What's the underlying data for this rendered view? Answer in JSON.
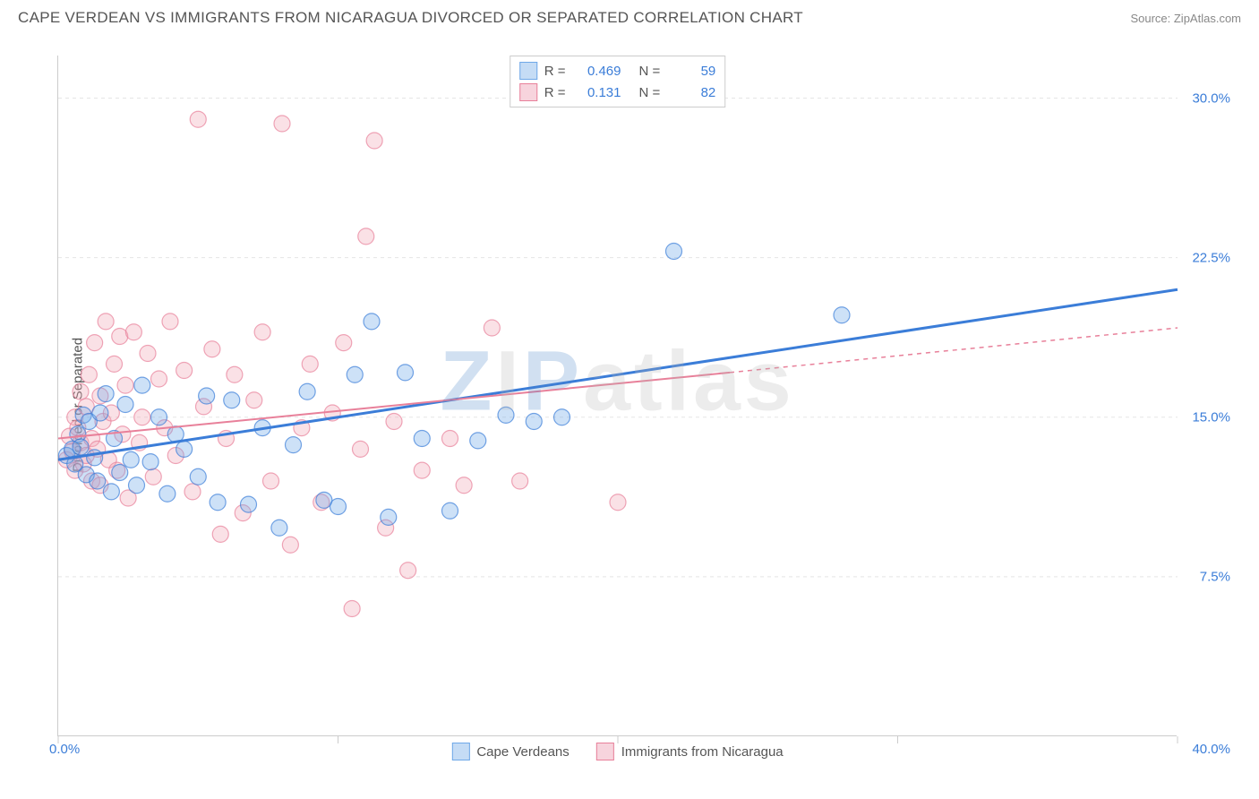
{
  "header": {
    "title": "CAPE VERDEAN VS IMMIGRANTS FROM NICARAGUA DIVORCED OR SEPARATED CORRELATION CHART",
    "source": "Source: ZipAtlas.com"
  },
  "chart": {
    "type": "scatter",
    "y_axis_label": "Divorced or Separated",
    "watermark": "ZIPatlas",
    "xlim": [
      0,
      40
    ],
    "ylim": [
      0,
      32
    ],
    "x_ticks": [
      0,
      10,
      20,
      30,
      40
    ],
    "y_ticks": [
      7.5,
      15.0,
      22.5,
      30.0
    ],
    "x_min_label": "0.0%",
    "x_max_label": "40.0%",
    "y_tick_labels": [
      "7.5%",
      "15.0%",
      "22.5%",
      "30.0%"
    ],
    "grid_color": "#e5e5e5",
    "axis_label_color": "#3b7dd8",
    "marker_radius": 9,
    "marker_fill_opacity": 0.35,
    "series_a": {
      "name": "Cape Verdeans",
      "color": "#6fa8e8",
      "stroke": "#3b7dd8",
      "R": "0.469",
      "N": "59",
      "trend": {
        "x1": 0,
        "y1": 13.0,
        "x2": 40,
        "y2": 21.0,
        "width": 3,
        "dashed": false
      },
      "points": [
        [
          0.3,
          13.2
        ],
        [
          0.5,
          13.5
        ],
        [
          0.6,
          12.8
        ],
        [
          0.7,
          14.2
        ],
        [
          0.8,
          13.6
        ],
        [
          0.9,
          15.1
        ],
        [
          1.0,
          12.3
        ],
        [
          1.1,
          14.8
        ],
        [
          1.3,
          13.1
        ],
        [
          1.4,
          12.0
        ],
        [
          1.5,
          15.2
        ],
        [
          1.7,
          16.1
        ],
        [
          1.9,
          11.5
        ],
        [
          2.0,
          14.0
        ],
        [
          2.2,
          12.4
        ],
        [
          2.4,
          15.6
        ],
        [
          2.6,
          13.0
        ],
        [
          2.8,
          11.8
        ],
        [
          3.0,
          16.5
        ],
        [
          3.3,
          12.9
        ],
        [
          3.6,
          15.0
        ],
        [
          3.9,
          11.4
        ],
        [
          4.2,
          14.2
        ],
        [
          4.5,
          13.5
        ],
        [
          5.0,
          12.2
        ],
        [
          5.3,
          16.0
        ],
        [
          5.7,
          11.0
        ],
        [
          6.2,
          15.8
        ],
        [
          6.8,
          10.9
        ],
        [
          7.3,
          14.5
        ],
        [
          7.9,
          9.8
        ],
        [
          8.4,
          13.7
        ],
        [
          8.9,
          16.2
        ],
        [
          9.5,
          11.1
        ],
        [
          10.0,
          10.8
        ],
        [
          10.6,
          17.0
        ],
        [
          11.2,
          19.5
        ],
        [
          11.8,
          10.3
        ],
        [
          12.4,
          17.1
        ],
        [
          13.0,
          14.0
        ],
        [
          14.0,
          10.6
        ],
        [
          15.0,
          13.9
        ],
        [
          16.0,
          15.1
        ],
        [
          17.0,
          14.8
        ],
        [
          18.0,
          15.0
        ],
        [
          22.0,
          22.8
        ],
        [
          28.0,
          19.8
        ]
      ]
    },
    "series_b": {
      "name": "Immigrants from Nicaragua",
      "color": "#f0a8b8",
      "stroke": "#e8809a",
      "R": "0.131",
      "N": "82",
      "trend_solid": {
        "x1": 0,
        "y1": 14.0,
        "x2": 24,
        "y2": 17.1,
        "width": 2
      },
      "trend_dashed": {
        "x1": 24,
        "y1": 17.1,
        "x2": 40,
        "y2": 19.2,
        "width": 1.5
      },
      "points": [
        [
          0.3,
          13.0
        ],
        [
          0.4,
          14.1
        ],
        [
          0.5,
          13.4
        ],
        [
          0.6,
          15.0
        ],
        [
          0.6,
          12.5
        ],
        [
          0.7,
          14.5
        ],
        [
          0.8,
          13.8
        ],
        [
          0.8,
          16.2
        ],
        [
          0.9,
          12.8
        ],
        [
          1.0,
          15.5
        ],
        [
          1.0,
          13.2
        ],
        [
          1.1,
          17.0
        ],
        [
          1.2,
          14.0
        ],
        [
          1.2,
          12.0
        ],
        [
          1.3,
          18.5
        ],
        [
          1.4,
          13.5
        ],
        [
          1.5,
          16.0
        ],
        [
          1.5,
          11.8
        ],
        [
          1.6,
          14.8
        ],
        [
          1.7,
          19.5
        ],
        [
          1.8,
          13.0
        ],
        [
          1.9,
          15.2
        ],
        [
          2.0,
          17.5
        ],
        [
          2.1,
          12.5
        ],
        [
          2.2,
          18.8
        ],
        [
          2.3,
          14.2
        ],
        [
          2.4,
          16.5
        ],
        [
          2.5,
          11.2
        ],
        [
          2.7,
          19.0
        ],
        [
          2.9,
          13.8
        ],
        [
          3.0,
          15.0
        ],
        [
          3.2,
          18.0
        ],
        [
          3.4,
          12.2
        ],
        [
          3.6,
          16.8
        ],
        [
          3.8,
          14.5
        ],
        [
          4.0,
          19.5
        ],
        [
          4.2,
          13.2
        ],
        [
          4.5,
          17.2
        ],
        [
          4.8,
          11.5
        ],
        [
          5.0,
          29.0
        ],
        [
          5.2,
          15.5
        ],
        [
          5.5,
          18.2
        ],
        [
          5.8,
          9.5
        ],
        [
          6.0,
          14.0
        ],
        [
          6.3,
          17.0
        ],
        [
          6.6,
          10.5
        ],
        [
          7.0,
          15.8
        ],
        [
          7.3,
          19.0
        ],
        [
          7.6,
          12.0
        ],
        [
          8.0,
          28.8
        ],
        [
          8.3,
          9.0
        ],
        [
          8.7,
          14.5
        ],
        [
          9.0,
          17.5
        ],
        [
          9.4,
          11.0
        ],
        [
          9.8,
          15.2
        ],
        [
          10.2,
          18.5
        ],
        [
          10.5,
          6.0
        ],
        [
          10.8,
          13.5
        ],
        [
          11.0,
          23.5
        ],
        [
          11.3,
          28.0
        ],
        [
          11.7,
          9.8
        ],
        [
          12.0,
          14.8
        ],
        [
          12.5,
          7.8
        ],
        [
          13.0,
          12.5
        ],
        [
          14.0,
          14.0
        ],
        [
          14.5,
          11.8
        ],
        [
          15.5,
          19.2
        ],
        [
          16.5,
          12.0
        ],
        [
          20.0,
          11.0
        ]
      ]
    },
    "bottom_legend": [
      {
        "label": "Cape Verdeans",
        "fill": "#c5dcf5",
        "stroke": "#6fa8e8"
      },
      {
        "label": "Immigrants from Nicaragua",
        "fill": "#f7d4dd",
        "stroke": "#e8809a"
      }
    ],
    "stats_legend": [
      {
        "fill": "#c5dcf5",
        "stroke": "#6fa8e8",
        "R": "0.469",
        "N": "59"
      },
      {
        "fill": "#f7d4dd",
        "stroke": "#e8809a",
        "R": "0.131",
        "N": "82"
      }
    ]
  }
}
